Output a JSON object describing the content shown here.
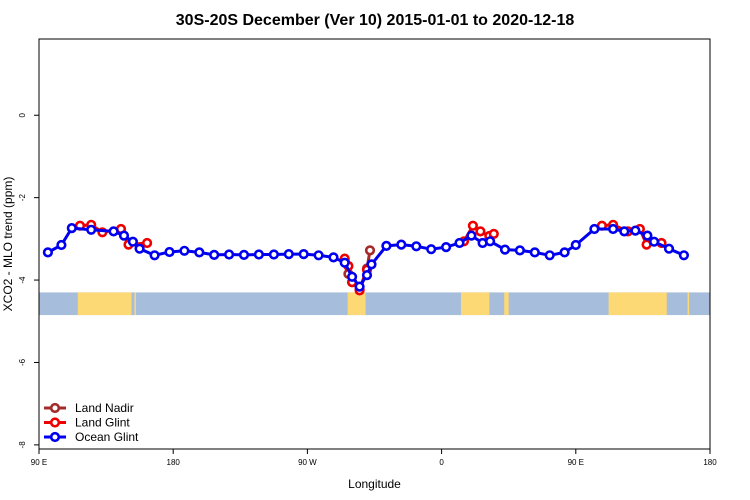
{
  "chart_data": {
    "type": "line",
    "title": "30S-20S December (Ver 10)   2015-01-01 to 2020-12-18",
    "xlabel": "Longitude",
    "ylabel": "XCO2 - MLO trend (ppm)",
    "xlim": [
      90,
      540
    ],
    "ylim": [
      -8.1,
      1.85
    ],
    "x_ticks": [
      {
        "value": 90,
        "label": "90 E"
      },
      {
        "value": 180,
        "label": "180"
      },
      {
        "value": 270,
        "label": "90 W"
      },
      {
        "value": 360,
        "label": "0"
      },
      {
        "value": 450,
        "label": "90 E"
      },
      {
        "value": 540,
        "label": "180"
      }
    ],
    "y_ticks": [
      {
        "value": 0,
        "label": "0"
      },
      {
        "value": -2,
        "label": "-2"
      },
      {
        "value": -4,
        "label": "-4"
      },
      {
        "value": -6,
        "label": "-6"
      },
      {
        "value": -8,
        "label": "-8"
      }
    ],
    "land_band": {
      "ymin": -4.85,
      "ymax": -4.3,
      "ocean_color": "#a6bddb",
      "land_color": "#fdd976",
      "land_ranges": [
        [
          116,
          152
        ],
        [
          154,
          155
        ],
        [
          297,
          309
        ],
        [
          373,
          392
        ],
        [
          402,
          405
        ],
        [
          472,
          511
        ],
        [
          525,
          526
        ]
      ]
    },
    "series": [
      {
        "name": "Land Nadir",
        "color": "#a52a2a",
        "segments": [
          [
            [
              295,
              -3.52
            ],
            [
              297.5,
              -3.85
            ],
            [
              300,
              -4.05
            ],
            [
              305,
              -4.22
            ],
            [
              310,
              -3.72
            ],
            [
              312,
              -3.28
            ]
          ]
        ]
      },
      {
        "name": "Land Glint",
        "color": "#ee0000",
        "segments": [
          [
            [
              117.5,
              -2.68
            ],
            [
              125,
              -2.66
            ],
            [
              132.5,
              -2.84
            ],
            [
              145,
              -2.76
            ],
            [
              150,
              -3.14
            ],
            [
              162.5,
              -3.1
            ]
          ],
          [
            [
              295,
              -3.48
            ],
            [
              297.5,
              -3.66
            ],
            [
              300,
              -4.05
            ],
            [
              305,
              -4.25
            ],
            [
              310,
              -3.75
            ]
          ],
          [
            [
              375,
              -3.06
            ],
            [
              381,
              -2.68
            ],
            [
              386,
              -2.82
            ],
            [
              392,
              -2.93
            ],
            [
              395,
              -2.88
            ]
          ],
          [
            [
              467.5,
              -2.68
            ],
            [
              475,
              -2.66
            ],
            [
              485,
              -2.82
            ],
            [
              493,
              -2.76
            ],
            [
              497.5,
              -3.14
            ],
            [
              507.5,
              -3.1
            ]
          ]
        ]
      },
      {
        "name": "Ocean Glint",
        "color": "#0000ee",
        "segments": [
          [
            [
              96,
              -3.33
            ],
            [
              105,
              -3.15
            ],
            [
              112,
              -2.74
            ],
            [
              125,
              -2.78
            ],
            [
              140,
              -2.82
            ],
            [
              147,
              -2.92
            ],
            [
              153,
              -3.07
            ],
            [
              157.5,
              -3.24
            ],
            [
              167.5,
              -3.4
            ],
            [
              177.5,
              -3.32
            ],
            [
              187.5,
              -3.29
            ],
            [
              197.5,
              -3.33
            ],
            [
              207.5,
              -3.39
            ],
            [
              217.5,
              -3.38
            ],
            [
              227.5,
              -3.39
            ],
            [
              237.5,
              -3.38
            ],
            [
              247.5,
              -3.38
            ],
            [
              257.5,
              -3.37
            ],
            [
              267.5,
              -3.37
            ],
            [
              277.5,
              -3.4
            ],
            [
              287.5,
              -3.45
            ],
            [
              295,
              -3.58
            ],
            [
              300,
              -3.92
            ],
            [
              305,
              -4.16
            ],
            [
              310,
              -3.88
            ],
            [
              313,
              -3.62
            ],
            [
              323,
              -3.17
            ],
            [
              333,
              -3.14
            ],
            [
              343,
              -3.18
            ],
            [
              353,
              -3.25
            ],
            [
              363,
              -3.2
            ],
            [
              372,
              -3.1
            ],
            [
              380,
              -2.92
            ],
            [
              387.5,
              -3.1
            ],
            [
              392.5,
              -3.06
            ],
            [
              402.5,
              -3.26
            ],
            [
              412.5,
              -3.28
            ],
            [
              422.5,
              -3.33
            ],
            [
              432.5,
              -3.4
            ],
            [
              442.5,
              -3.33
            ],
            [
              450,
              -3.15
            ],
            [
              462.5,
              -2.76
            ],
            [
              475,
              -2.76
            ],
            [
              482.5,
              -2.82
            ],
            [
              490,
              -2.8
            ],
            [
              498,
              -2.92
            ],
            [
              502.5,
              -3.07
            ],
            [
              512.5,
              -3.24
            ],
            [
              522.5,
              -3.4
            ]
          ]
        ]
      }
    ],
    "legend": {
      "placement": "bottom-left",
      "entries": [
        "Land Nadir",
        "Land Glint",
        "Ocean Glint"
      ]
    }
  }
}
